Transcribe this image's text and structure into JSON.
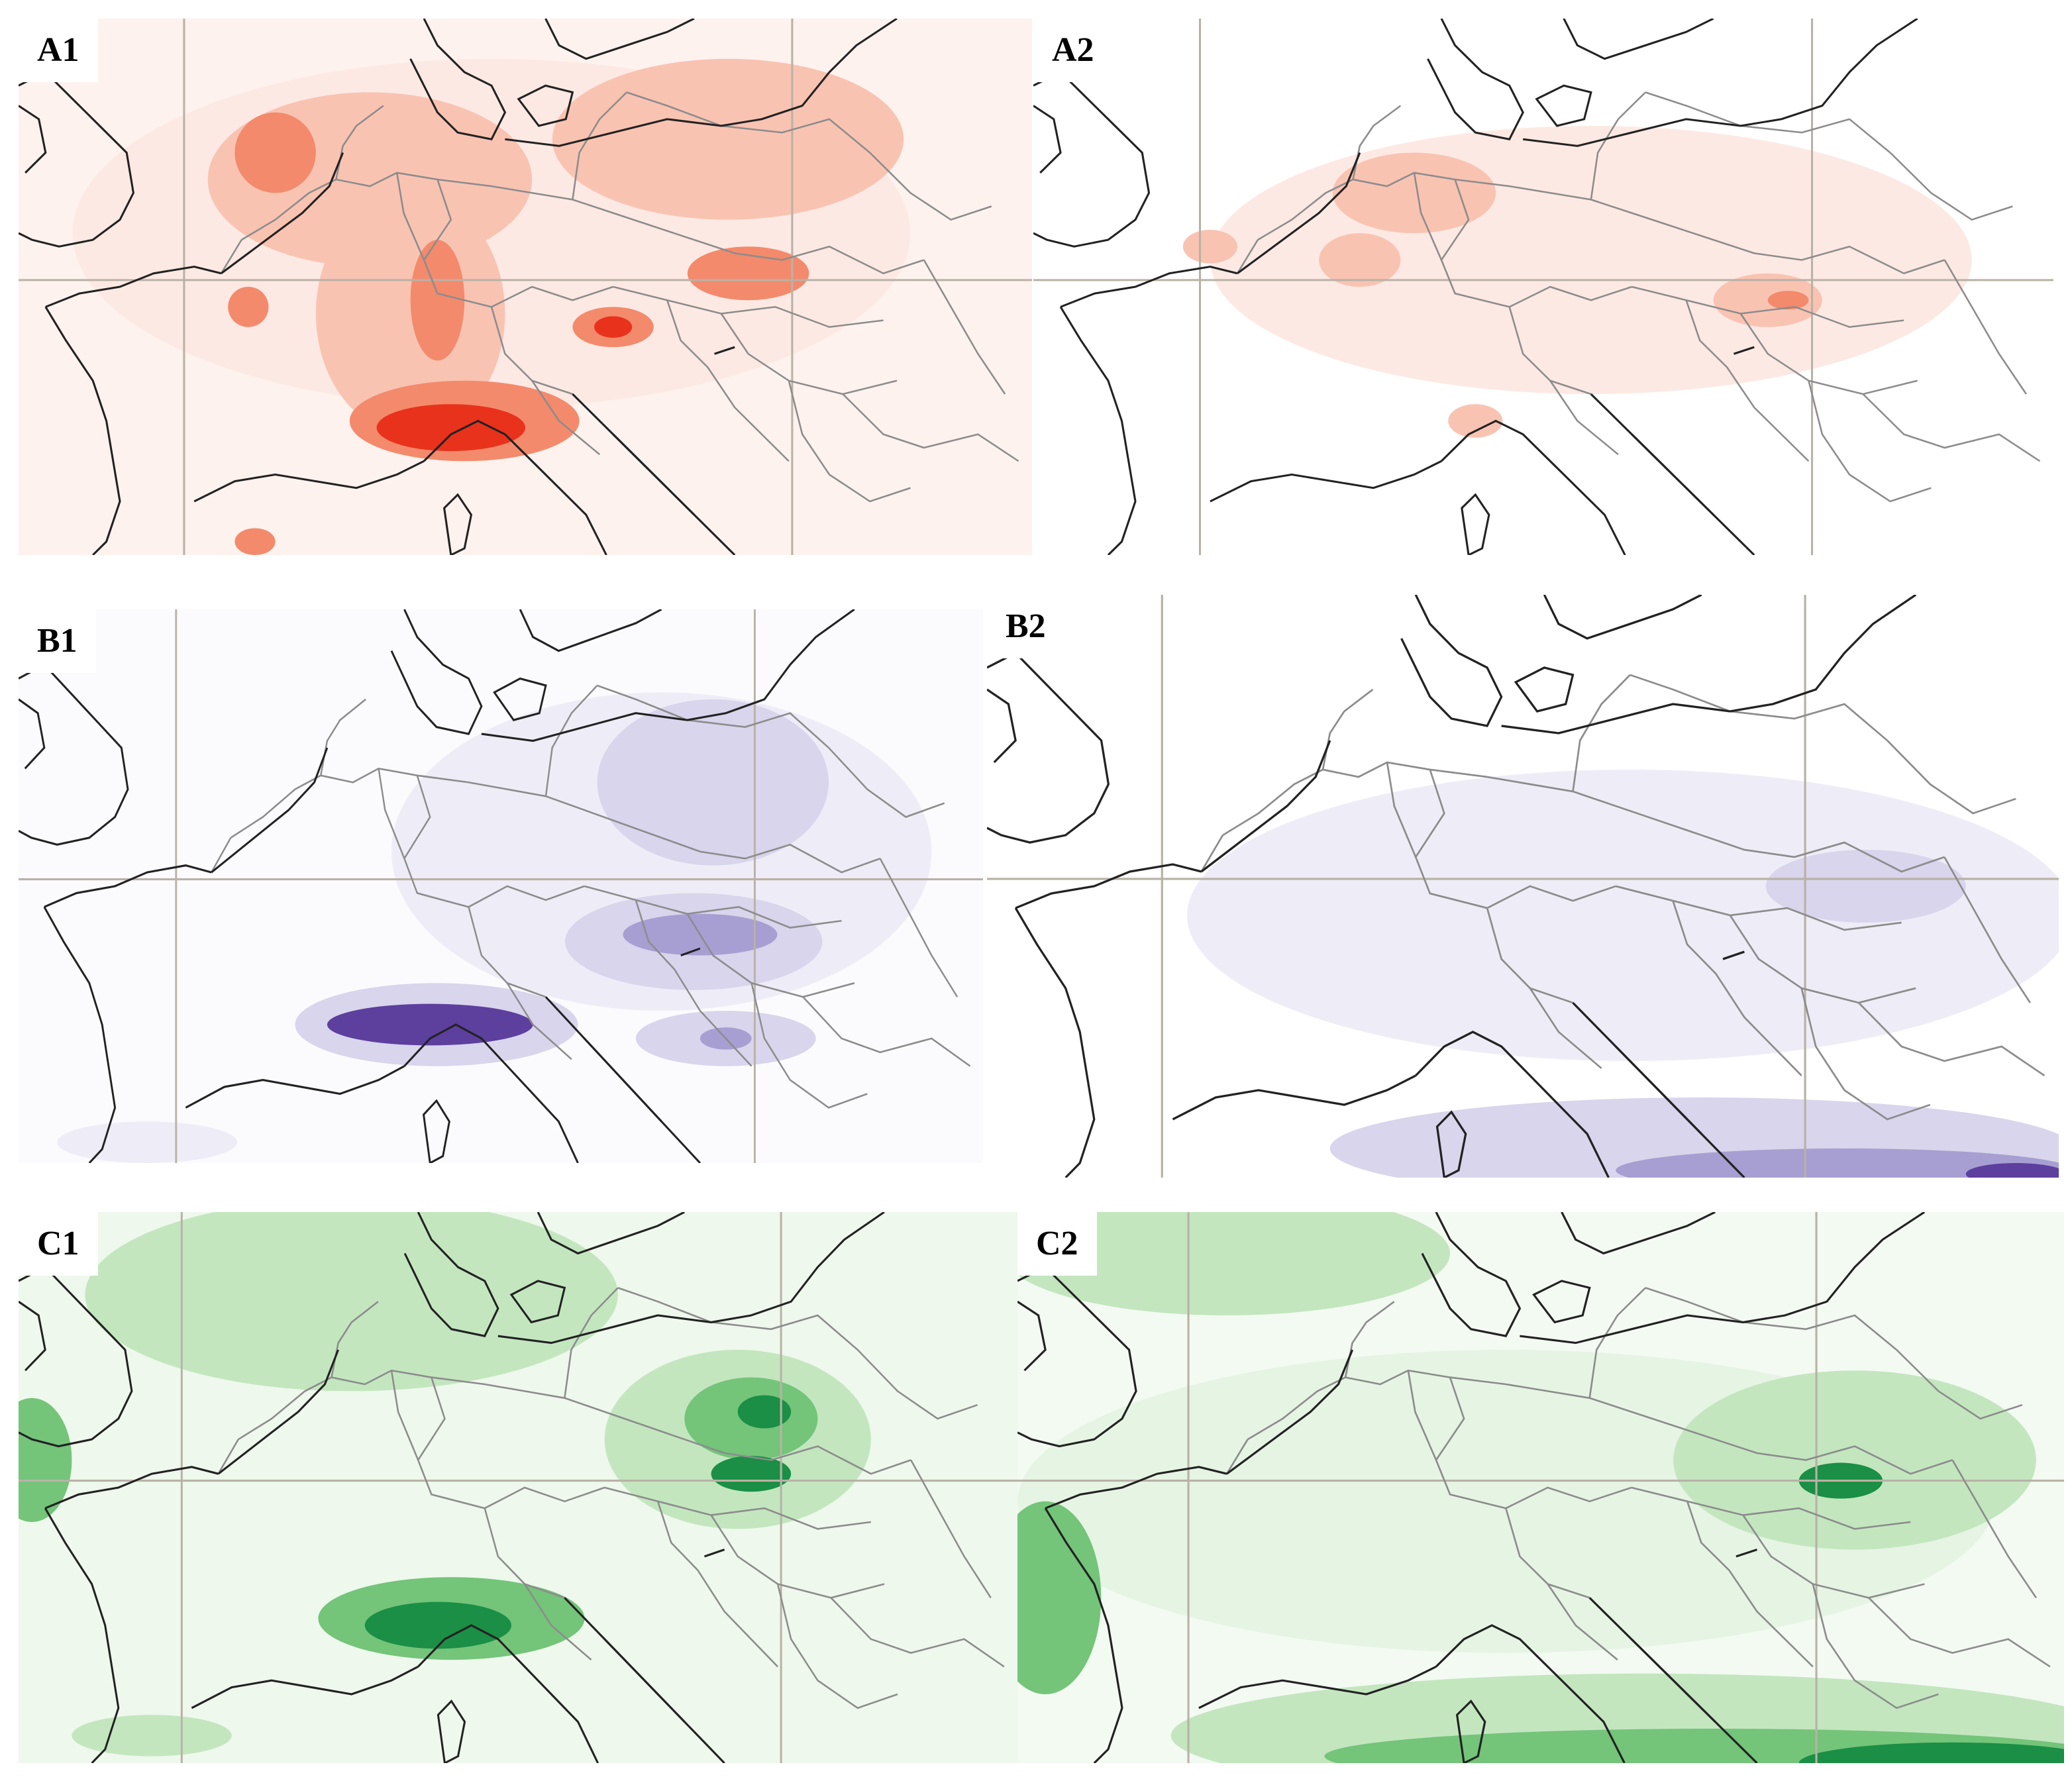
{
  "figure": {
    "panels": [
      {
        "id": "A1",
        "label": "A1",
        "palette": "red"
      },
      {
        "id": "A2",
        "label": "A2",
        "palette": "red"
      },
      {
        "id": "B1",
        "label": "B1",
        "palette": "purple"
      },
      {
        "id": "B2",
        "label": "B2",
        "palette": "purple"
      },
      {
        "id": "C1",
        "label": "C1",
        "palette": "green"
      },
      {
        "id": "C2",
        "label": "C2",
        "palette": "green"
      }
    ]
  },
  "colors": {
    "red": [
      "#fde9e3",
      "#f9c3b2",
      "#f38a6c",
      "#e8321c"
    ],
    "purple": [
      "#eeedf7",
      "#d8d5ec",
      "#a79fd2",
      "#5d3f9e"
    ],
    "green": [
      "#e6f4e4",
      "#c3e6bf",
      "#74c47a",
      "#1a8f45"
    ],
    "coast": "#222222",
    "border": "#8c8c8c",
    "grid": "#b9b2a6"
  }
}
